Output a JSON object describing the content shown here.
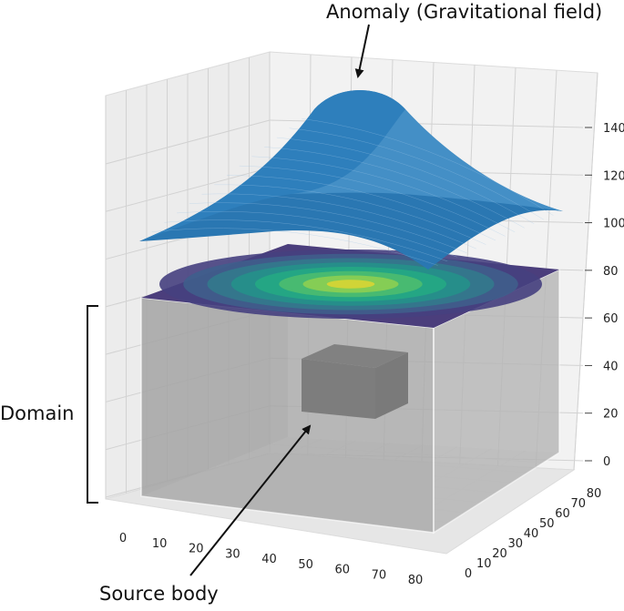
{
  "annotations": {
    "anomaly": "Anomaly (Gravitational field)",
    "domain": "Domain",
    "source": "Source body"
  },
  "colors": {
    "surface": "#2a77b2",
    "surface_light": "#4e97cc",
    "domain_fill": "#a8a8a8",
    "source_body": "#3c3c3c",
    "contour_outer": "#4b3e7c",
    "contour_inner": "#e0d02a"
  },
  "chart_data": {
    "type": "surface3d",
    "title": "",
    "xlabel": "",
    "ylabel": "",
    "zlabel": "",
    "x_ticks": [
      0,
      10,
      20,
      30,
      40,
      50,
      60,
      70,
      80
    ],
    "y_ticks": [
      0,
      10,
      20,
      30,
      40,
      50,
      60,
      70,
      80
    ],
    "z_ticks": [
      0,
      20,
      40,
      60,
      80,
      100,
      120,
      140
    ],
    "xlim": [
      0,
      80
    ],
    "ylim": [
      0,
      80
    ],
    "zlim": [
      0,
      155
    ],
    "grid": true,
    "domain_box": {
      "x": [
        0,
        80
      ],
      "y": [
        0,
        80
      ],
      "z": [
        0,
        65
      ]
    },
    "source_body": {
      "x": [
        30,
        50
      ],
      "y": [
        30,
        50
      ],
      "z": [
        20,
        40
      ]
    },
    "anomaly_surface": {
      "center": [
        40,
        40
      ],
      "peak_z": 150,
      "base_z": 90
    },
    "contour_levels": 8
  }
}
